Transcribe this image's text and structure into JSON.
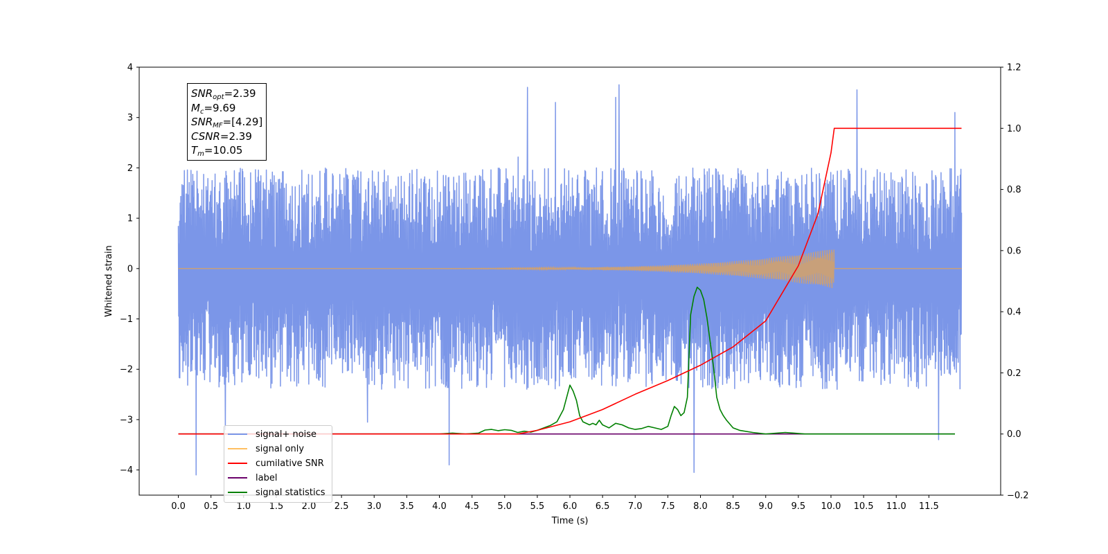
{
  "chart_data": {
    "type": "line",
    "xlabel": "Time (s)",
    "ylabel": "Whitened strain",
    "xlim": [
      -0.6,
      12.6
    ],
    "ylim": [
      -4.5,
      4
    ],
    "y2lim": [
      -0.2,
      1.2
    ],
    "x_ticks": [
      0.0,
      0.5,
      1.0,
      1.5,
      2.0,
      2.5,
      3.0,
      3.5,
      4.0,
      4.5,
      5.0,
      5.5,
      6.0,
      6.5,
      7.0,
      7.5,
      8.0,
      8.5,
      9.0,
      9.5,
      10.0,
      10.5,
      11.0,
      11.5
    ],
    "x_tick_labels": [
      "0.0",
      "0.5",
      "1.0",
      "1.5",
      "2.0",
      "2.5",
      "3.0",
      "3.5",
      "4.0",
      "4.5",
      "5.0",
      "5.5",
      "6.0",
      "6.5",
      "7.0",
      "7.5",
      "8.0",
      "8.5",
      "9.0",
      "9.5",
      "10.0",
      "10.5",
      "11.0",
      "11.5"
    ],
    "y_ticks": [
      -4,
      -3,
      -2,
      -1,
      0,
      1,
      2,
      3,
      4
    ],
    "y_tick_labels": [
      "−4",
      "−3",
      "−2",
      "−1",
      "0",
      "1",
      "2",
      "3",
      "4"
    ],
    "y2_ticks": [
      -0.2,
      0.0,
      0.2,
      0.4,
      0.6,
      0.8,
      1.0,
      1.2
    ],
    "y2_tick_labels": [
      "−0.2",
      "0.0",
      "0.2",
      "0.4",
      "0.6",
      "0.8",
      "1.0",
      "1.2"
    ],
    "legend_position": "lower-left",
    "grid": false,
    "series": [
      {
        "name": "signal+ noise",
        "color": "#7b96e8",
        "axis": "left",
        "x_range": [
          0,
          12
        ],
        "typical_range": [
          -1.8,
          1.3
        ],
        "spikes": [
          {
            "x": 0.27,
            "y": -4.1
          },
          {
            "x": 4.15,
            "y": -3.9
          },
          {
            "x": 7.9,
            "y": -4.05
          },
          {
            "x": 11.65,
            "y": -3.4
          },
          {
            "x": 5.35,
            "y": 3.6
          },
          {
            "x": 6.75,
            "y": 3.65
          },
          {
            "x": 10.4,
            "y": 3.55
          },
          {
            "x": 11.9,
            "y": 3.1
          },
          {
            "x": 6.7,
            "y": 3.4
          },
          {
            "x": 5.78,
            "y": 3.3
          },
          {
            "x": 0.72,
            "y": -3.2
          },
          {
            "x": 2.9,
            "y": -3.05
          }
        ]
      },
      {
        "name": "signal only",
        "color": "#c8a07a",
        "axis": "left",
        "chirp_end": 10.05,
        "peak_amplitude": 0.4
      },
      {
        "name": "cumilative SNR",
        "color": "#ff0000",
        "axis": "right",
        "x": [
          0,
          5.2,
          5.5,
          6.0,
          6.5,
          7.0,
          7.5,
          8.0,
          8.5,
          9.0,
          9.5,
          9.8,
          10.0,
          10.05,
          12.0
        ],
        "values": [
          0.0,
          0.0,
          0.012,
          0.04,
          0.08,
          0.13,
          0.175,
          0.225,
          0.285,
          0.37,
          0.55,
          0.72,
          0.92,
          1.0,
          1.0
        ]
      },
      {
        "name": "label",
        "color": "#6a006a",
        "axis": "right",
        "x": [
          0,
          11.9
        ],
        "values": [
          0.0,
          0.0
        ]
      },
      {
        "name": "signal statistics",
        "color": "#008000",
        "axis": "right",
        "x": [
          0,
          4.0,
          4.2,
          4.4,
          4.6,
          4.7,
          4.8,
          4.9,
          5.0,
          5.1,
          5.2,
          5.3,
          5.4,
          5.5,
          5.6,
          5.7,
          5.8,
          5.9,
          6.0,
          6.05,
          6.1,
          6.15,
          6.2,
          6.3,
          6.35,
          6.4,
          6.45,
          6.5,
          6.55,
          6.6,
          6.7,
          6.8,
          6.9,
          7.0,
          7.1,
          7.2,
          7.3,
          7.4,
          7.5,
          7.55,
          7.6,
          7.65,
          7.7,
          7.75,
          7.8,
          7.85,
          7.9,
          7.95,
          8.0,
          8.05,
          8.1,
          8.15,
          8.2,
          8.25,
          8.3,
          8.35,
          8.4,
          8.5,
          8.6,
          8.8,
          9.0,
          9.3,
          9.6,
          10.0,
          11.0,
          11.9
        ],
        "values": [
          0.0,
          0.0,
          0.003,
          0.0,
          0.003,
          0.013,
          0.015,
          0.011,
          0.014,
          0.012,
          0.005,
          0.009,
          0.006,
          0.012,
          0.02,
          0.028,
          0.04,
          0.08,
          0.16,
          0.14,
          0.11,
          0.06,
          0.04,
          0.03,
          0.035,
          0.03,
          0.045,
          0.03,
          0.025,
          0.02,
          0.035,
          0.03,
          0.02,
          0.015,
          0.018,
          0.025,
          0.02,
          0.015,
          0.025,
          0.06,
          0.09,
          0.08,
          0.06,
          0.07,
          0.12,
          0.39,
          0.45,
          0.48,
          0.47,
          0.44,
          0.38,
          0.3,
          0.22,
          0.12,
          0.08,
          0.06,
          0.045,
          0.02,
          0.012,
          0.005,
          0.0,
          0.005,
          0.0,
          0.0,
          0.0,
          0.0
        ]
      }
    ]
  },
  "infobox": {
    "snr_opt": {
      "base": "SNR",
      "sub": "opt",
      "value": "=2.39"
    },
    "mc": {
      "base": "M",
      "sub": "c",
      "value": "=9.69"
    },
    "snr_mf": {
      "base": "SNR",
      "sub": "MF",
      "value": "=[4.29]"
    },
    "csnr": {
      "base": "CSNR",
      "value": "=2.39"
    },
    "tm": {
      "base": "T",
      "sub": "m",
      "value": "=10.05"
    }
  },
  "legend": {
    "items": [
      {
        "label": "signal+ noise",
        "color": "#7b96e8"
      },
      {
        "label": "signal only",
        "color": "#ffbf60"
      },
      {
        "label": "cumilative SNR",
        "color": "#ff0000"
      },
      {
        "label": "label",
        "color": "#6a006a"
      },
      {
        "label": "signal statistics",
        "color": "#008000"
      }
    ]
  }
}
